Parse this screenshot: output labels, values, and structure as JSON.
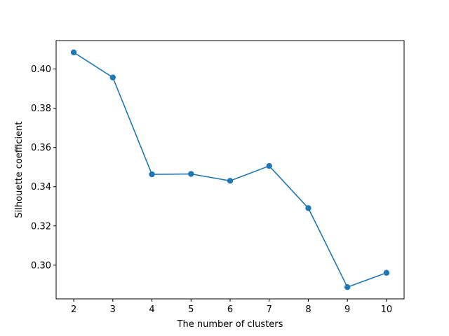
{
  "chart_data": {
    "type": "line",
    "title": "",
    "xlabel": "The number of clusters",
    "ylabel": "Silhouette coefficient",
    "x": [
      2,
      3,
      4,
      5,
      6,
      7,
      8,
      9,
      10
    ],
    "series": [
      {
        "values": [
          0.4085,
          0.3957,
          0.3463,
          0.3465,
          0.343,
          0.3506,
          0.3291,
          0.2888,
          0.2961
        ],
        "color": "#1f77b4",
        "marker": "circle"
      }
    ],
    "xlim": [
      1.55,
      10.45
    ],
    "ylim": [
      0.2828,
      0.4145
    ],
    "xticks": [
      2,
      3,
      4,
      5,
      6,
      7,
      8,
      9,
      10
    ],
    "xtick_labels": [
      "2",
      "3",
      "4",
      "5",
      "6",
      "7",
      "8",
      "9",
      "10"
    ],
    "yticks": [
      0.3,
      0.32,
      0.34,
      0.36,
      0.38,
      0.4
    ],
    "ytick_labels": [
      "0.30",
      "0.32",
      "0.34",
      "0.36",
      "0.38",
      "0.40"
    ],
    "grid": false,
    "legend": "none"
  }
}
